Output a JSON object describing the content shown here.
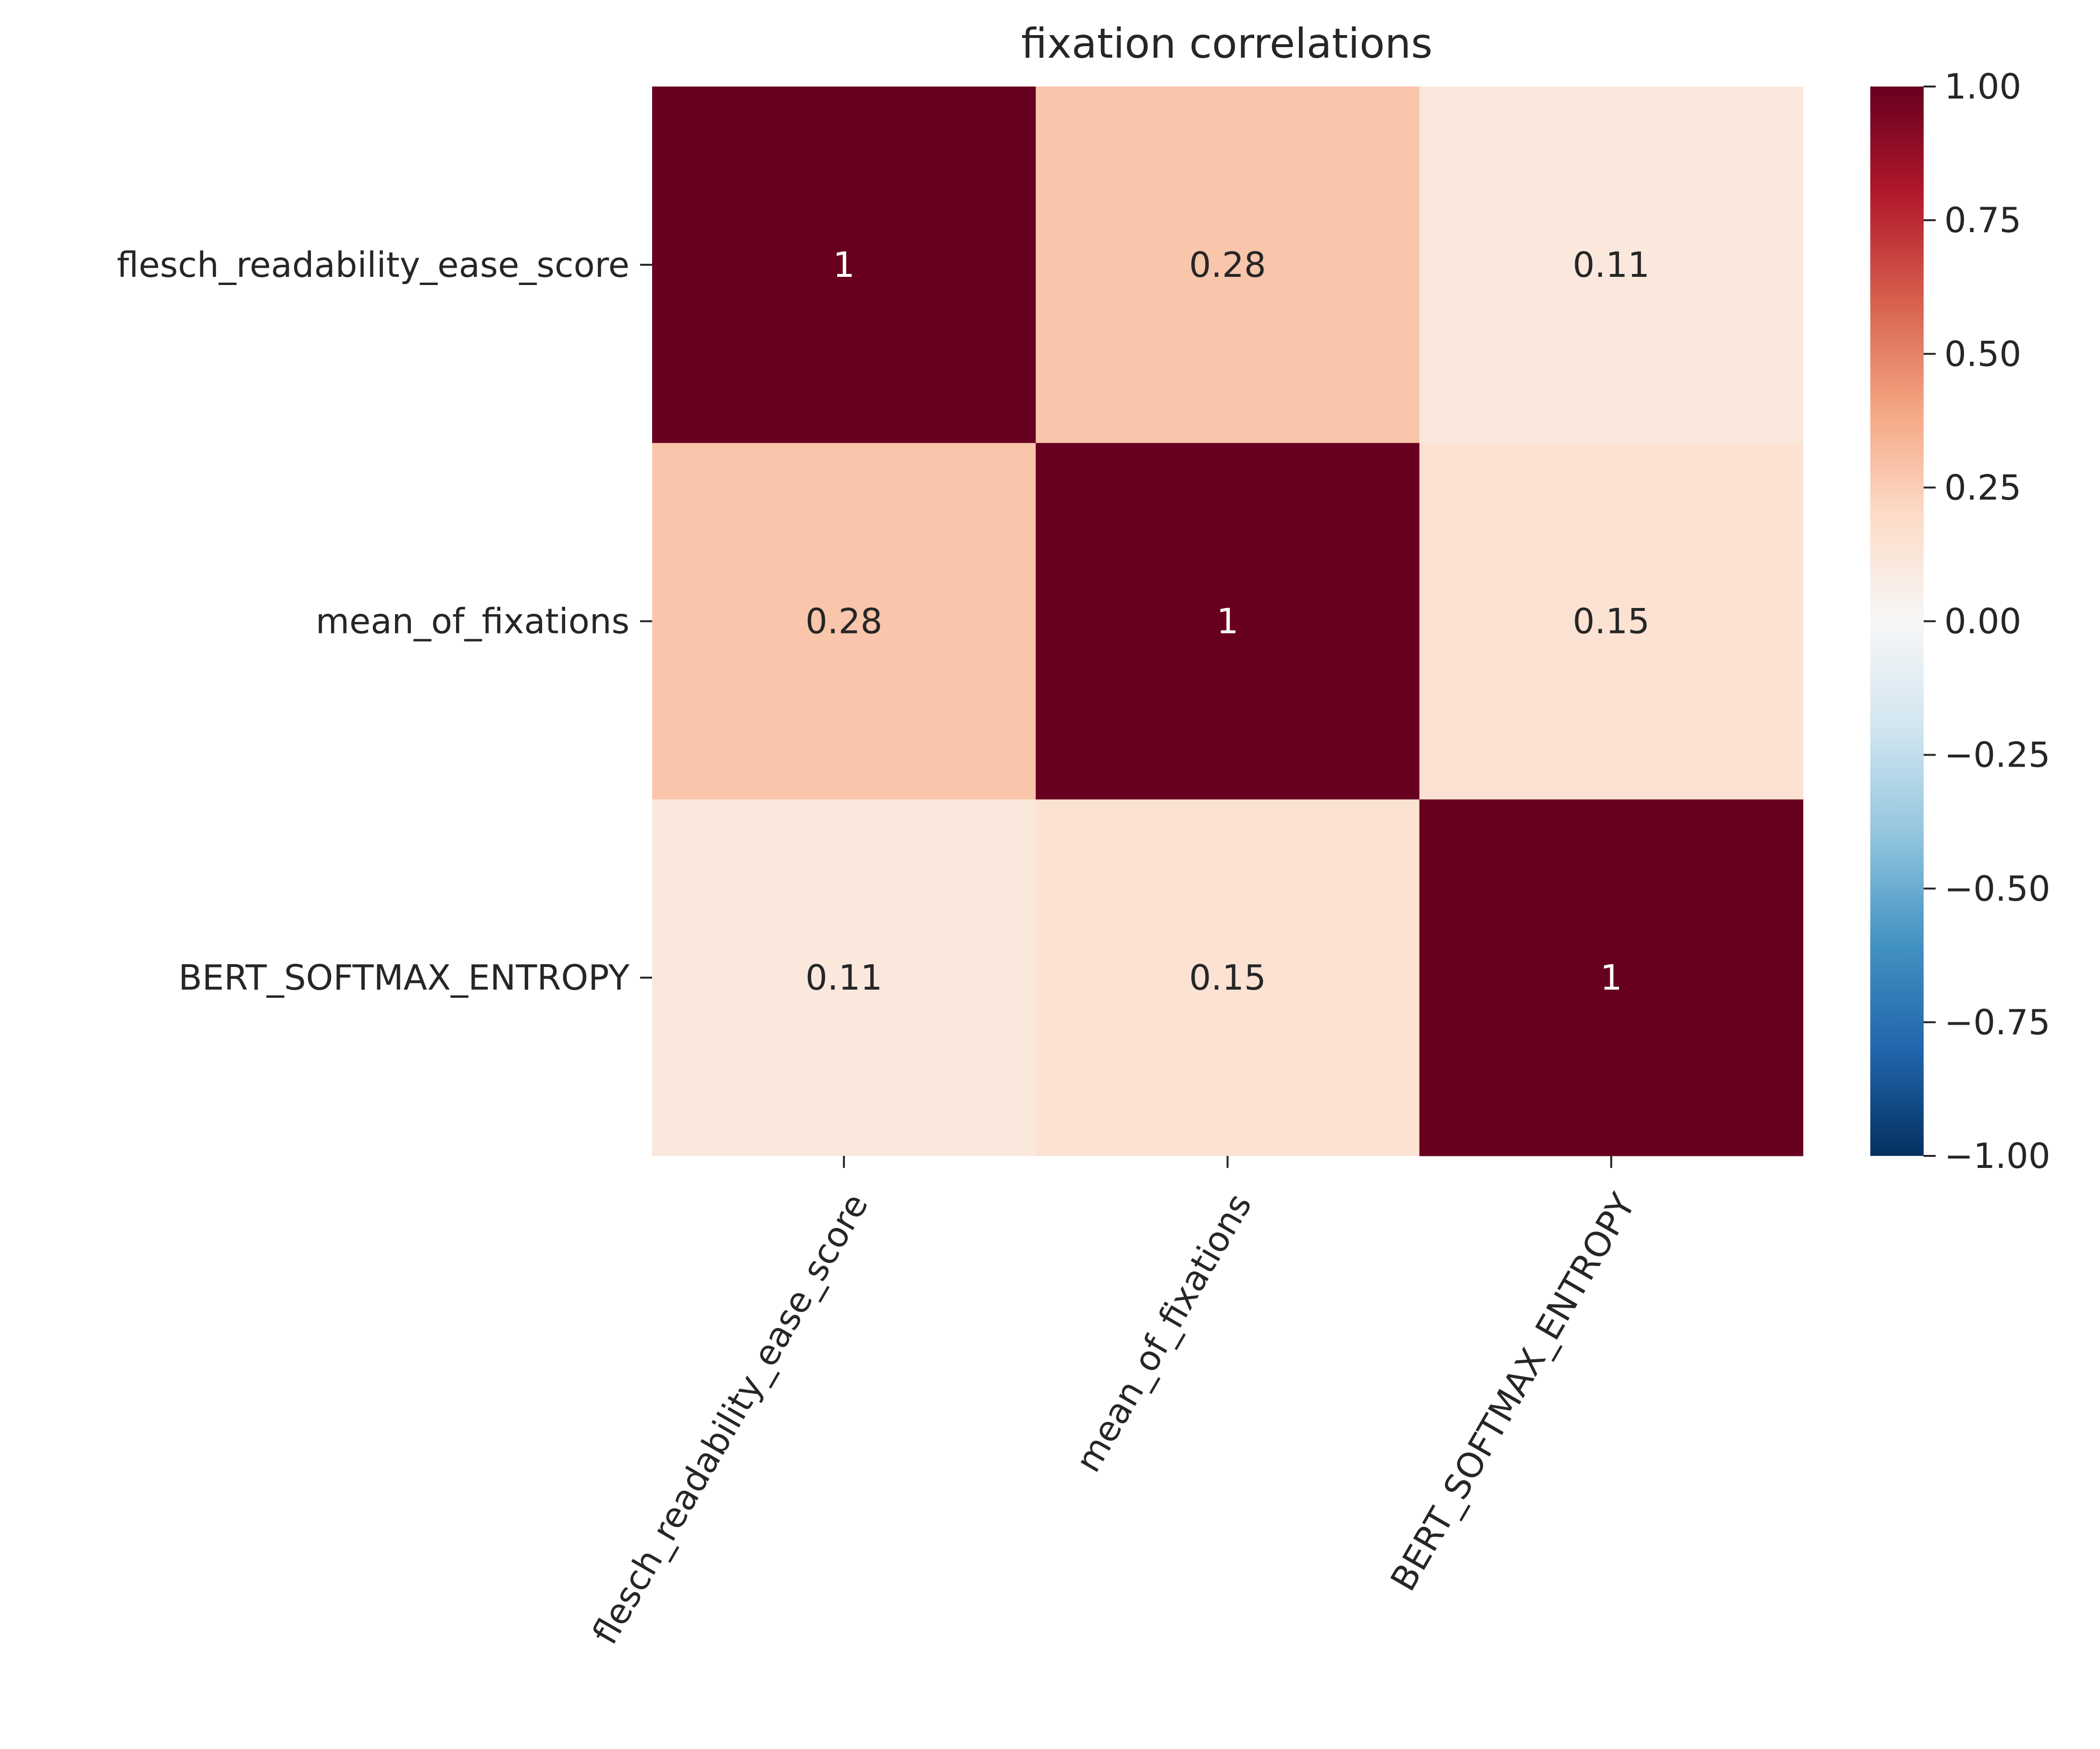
{
  "chart_data": {
    "type": "heatmap",
    "title": "fixation correlations",
    "row_labels": [
      "flesch_readability_ease_score",
      "mean_of_fixations",
      "BERT_SOFTMAX_ENTROPY"
    ],
    "col_labels": [
      "flesch_readability_ease_score",
      "mean_of_fixations",
      "BERT_SOFTMAX_ENTROPY"
    ],
    "values": [
      [
        1,
        0.28,
        0.11
      ],
      [
        0.28,
        1,
        0.15
      ],
      [
        0.11,
        0.15,
        1
      ]
    ],
    "annotations": [
      [
        "1",
        "0.28",
        "0.11"
      ],
      [
        "0.28",
        "1",
        "0.15"
      ],
      [
        "0.11",
        "0.15",
        "1"
      ]
    ],
    "colorbar": {
      "colormap": "RdBu_r",
      "vmin": -1.0,
      "vmax": 1.0,
      "tick_values": [
        1.0,
        0.75,
        0.5,
        0.25,
        0.0,
        -0.25,
        -0.5,
        -0.75,
        -1.0
      ],
      "tick_labels": [
        "1.00",
        "0.75",
        "0.50",
        "0.25",
        "0.00",
        "−0.25",
        "−0.50",
        "−0.75",
        "−1.00"
      ],
      "color_stops": [
        "#053061",
        "#2166ac",
        "#4393c3",
        "#92c5de",
        "#d1e5f0",
        "#f7f7f7",
        "#fddbc7",
        "#f4a582",
        "#d6604d",
        "#b2182b",
        "#67001f"
      ]
    },
    "annotation_colors": {
      "light": "#ffffff",
      "dark": "#262626"
    },
    "xlabel": "",
    "ylabel": "",
    "grid": false
  }
}
